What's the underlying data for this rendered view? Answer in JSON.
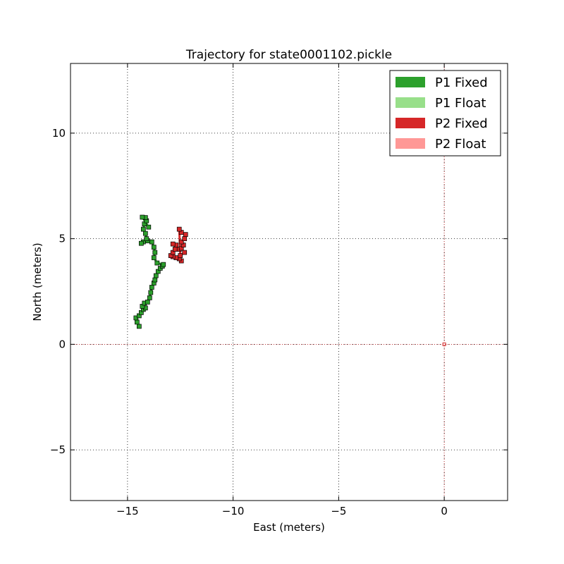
{
  "chart_data": {
    "type": "scatter",
    "title": "Trajectory for state0001102.pickle",
    "xlabel": "East (meters)",
    "ylabel": "North (meters)",
    "xlim": [
      -17.7,
      3.0
    ],
    "ylim": [
      -7.4,
      13.3
    ],
    "xticks": [
      -15,
      -10,
      -5,
      0
    ],
    "yticks": [
      -5,
      0,
      5,
      10
    ],
    "xtick_labels": [
      "−15",
      "−10",
      "−5",
      "0"
    ],
    "ytick_labels": [
      "−5",
      "0",
      "5",
      "10"
    ],
    "grid": true,
    "legend_position": "top-right",
    "reference_lines": {
      "x": 0,
      "y": 0,
      "color": "#d62728"
    },
    "series": [
      {
        "name": "P1 Fixed",
        "color": "#2ca02c",
        "points": [
          [
            -14.45,
            0.85
          ],
          [
            -14.55,
            1.05
          ],
          [
            -14.6,
            1.25
          ],
          [
            -14.45,
            1.35
          ],
          [
            -14.35,
            1.5
          ],
          [
            -14.25,
            1.65
          ],
          [
            -14.15,
            1.72
          ],
          [
            -14.3,
            1.8
          ],
          [
            -14.2,
            1.95
          ],
          [
            -14.05,
            2.0
          ],
          [
            -13.95,
            2.2
          ],
          [
            -13.9,
            2.45
          ],
          [
            -13.85,
            2.7
          ],
          [
            -13.75,
            2.9
          ],
          [
            -13.7,
            3.05
          ],
          [
            -13.65,
            3.25
          ],
          [
            -13.55,
            3.45
          ],
          [
            -13.45,
            3.6
          ],
          [
            -13.35,
            3.7
          ],
          [
            -13.3,
            3.78
          ],
          [
            -13.6,
            3.85
          ],
          [
            -13.75,
            4.1
          ],
          [
            -13.7,
            4.35
          ],
          [
            -13.75,
            4.6
          ],
          [
            -13.85,
            4.85
          ],
          [
            -14.05,
            4.9
          ],
          [
            -14.25,
            4.85
          ],
          [
            -14.35,
            4.78
          ],
          [
            -14.1,
            5.0
          ],
          [
            -14.15,
            5.25
          ],
          [
            -14.25,
            5.45
          ],
          [
            -14.2,
            5.7
          ],
          [
            -14.1,
            5.85
          ],
          [
            -14.15,
            6.0
          ],
          [
            -14.3,
            6.02
          ],
          [
            -14.0,
            5.55
          ]
        ]
      },
      {
        "name": "P1 Float",
        "color": "#98df8a",
        "points": []
      },
      {
        "name": "P2 Fixed",
        "color": "#d62728",
        "points": [
          [
            -12.45,
            3.95
          ],
          [
            -12.55,
            4.05
          ],
          [
            -12.7,
            4.1
          ],
          [
            -12.85,
            4.15
          ],
          [
            -12.95,
            4.2
          ],
          [
            -12.85,
            4.35
          ],
          [
            -12.75,
            4.5
          ],
          [
            -12.7,
            4.7
          ],
          [
            -12.85,
            4.75
          ],
          [
            -12.55,
            4.5
          ],
          [
            -12.45,
            4.55
          ],
          [
            -12.35,
            4.7
          ],
          [
            -12.45,
            4.85
          ],
          [
            -12.3,
            5.0
          ],
          [
            -12.25,
            5.2
          ],
          [
            -12.45,
            5.3
          ],
          [
            -12.55,
            5.45
          ],
          [
            -12.5,
            4.2
          ],
          [
            -12.3,
            4.35
          ]
        ]
      },
      {
        "name": "P2 Float",
        "color": "#ff9896",
        "points": []
      }
    ],
    "origin_marker": [
      0,
      0
    ]
  }
}
